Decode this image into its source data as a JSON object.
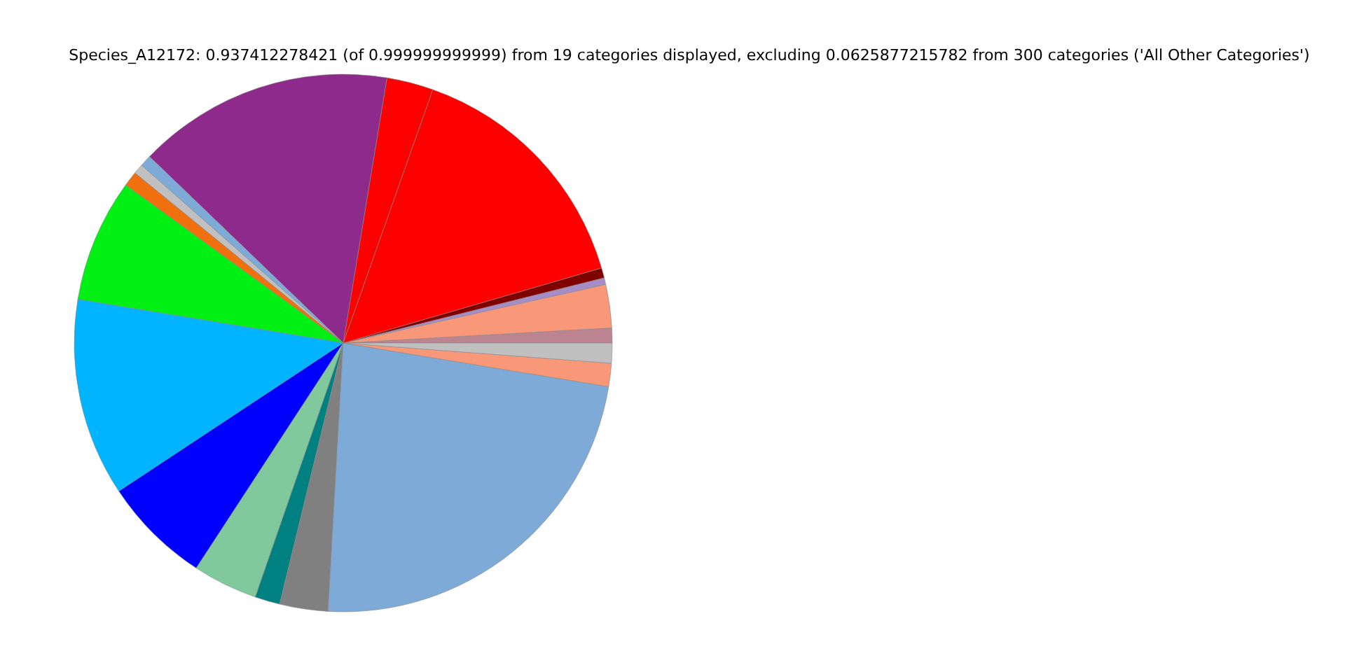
{
  "chart_data": {
    "type": "pie",
    "title": "Species_A12172: 0.937412278421 (of 0.999999999999) from 19 categories displayed, excluding 0.0625877215782 from 300 categories ('All Other Categories')",
    "categories": [
      null,
      null,
      null,
      null,
      null,
      null,
      null,
      null,
      null,
      null,
      null,
      null,
      null,
      null,
      null,
      null,
      null,
      null,
      null
    ],
    "values": [
      0.9,
      2.6,
      0.4,
      0.6,
      15.1,
      2.8,
      15.4,
      0.7,
      0.6,
      0.9,
      7.4,
      11.9,
      6.5,
      3.9,
      1.5,
      2.9,
      23.3,
      1.4,
      1.2
    ],
    "colors": [
      "#bc8490",
      "#f89878",
      "#a68dc8",
      "#800000",
      "#ff0000",
      "#ff0000",
      "#8e2a8c",
      "#7eaad8",
      "#c0c0c0",
      "#f07010",
      "#00f014",
      "#00b4ff",
      "#0000ff",
      "#80c99c",
      "#008080",
      "#808080",
      "#7eaad8",
      "#f89878",
      "#c0c0c0"
    ],
    "legend": false
  }
}
